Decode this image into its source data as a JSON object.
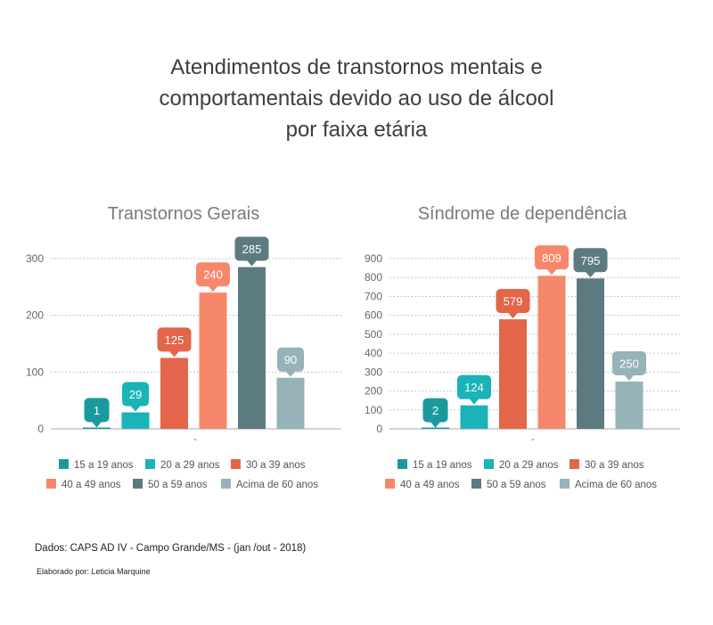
{
  "title_lines": [
    "Atendimentos de transtornos mentais e",
    "comportamentais devido ao uso de álcool",
    "por faixa etária"
  ],
  "colors": [
    "#1a9a9f",
    "#19b3b8",
    "#e3654a",
    "#f7876b",
    "#5c7b80",
    "#95b3b8"
  ],
  "chart_data": [
    {
      "type": "bar",
      "title": "Transtornos Gerais",
      "categories": [
        "-"
      ],
      "series": [
        {
          "name": "15 a 19 anos",
          "values": [
            1
          ]
        },
        {
          "name": "20 a 29 anos",
          "values": [
            29
          ]
        },
        {
          "name": "30 a 39 anos",
          "values": [
            125
          ]
        },
        {
          "name": "40 a 49 anos",
          "values": [
            240
          ]
        },
        {
          "name": "50 a 59 anos",
          "values": [
            285
          ]
        },
        {
          "name": "Acima de 60 anos",
          "values": [
            90
          ]
        }
      ],
      "data_labels": [
        "1",
        "29",
        "125",
        "240",
        "285",
        "90"
      ],
      "ylim": [
        0,
        300
      ],
      "yticks": [
        0,
        100,
        200,
        300
      ],
      "ytick_labels": [
        "0",
        "100",
        "200",
        "300"
      ],
      "grid": true,
      "legend": "bottom"
    },
    {
      "type": "bar",
      "title": "Síndrome de dependência",
      "categories": [
        "-"
      ],
      "series": [
        {
          "name": "15 a 19 anos",
          "values": [
            2
          ]
        },
        {
          "name": "20 a 29 anos",
          "values": [
            124
          ]
        },
        {
          "name": "30 a 39 anos",
          "values": [
            579
          ]
        },
        {
          "name": "40 a 49 anos",
          "values": [
            809
          ]
        },
        {
          "name": "50 a 59 anos",
          "values": [
            795
          ]
        },
        {
          "name": "Acima de 60 anos",
          "values": [
            250
          ]
        }
      ],
      "data_labels": [
        "2",
        "124",
        "579",
        "809",
        "795",
        "250"
      ],
      "ylim": [
        0,
        900
      ],
      "yticks": [
        0,
        100,
        200,
        300,
        400,
        500,
        600,
        700,
        800,
        900
      ],
      "ytick_labels": [
        "0",
        "100",
        "200",
        "300",
        "400",
        "500",
        "600",
        "700",
        "800",
        "900"
      ],
      "grid": true,
      "legend": "bottom"
    }
  ],
  "footer": {
    "source": "Dados: CAPS AD IV - Campo Grande/MS -  (jan /out - 2018)",
    "author": "Elaborado por: Leticia Marquine"
  }
}
